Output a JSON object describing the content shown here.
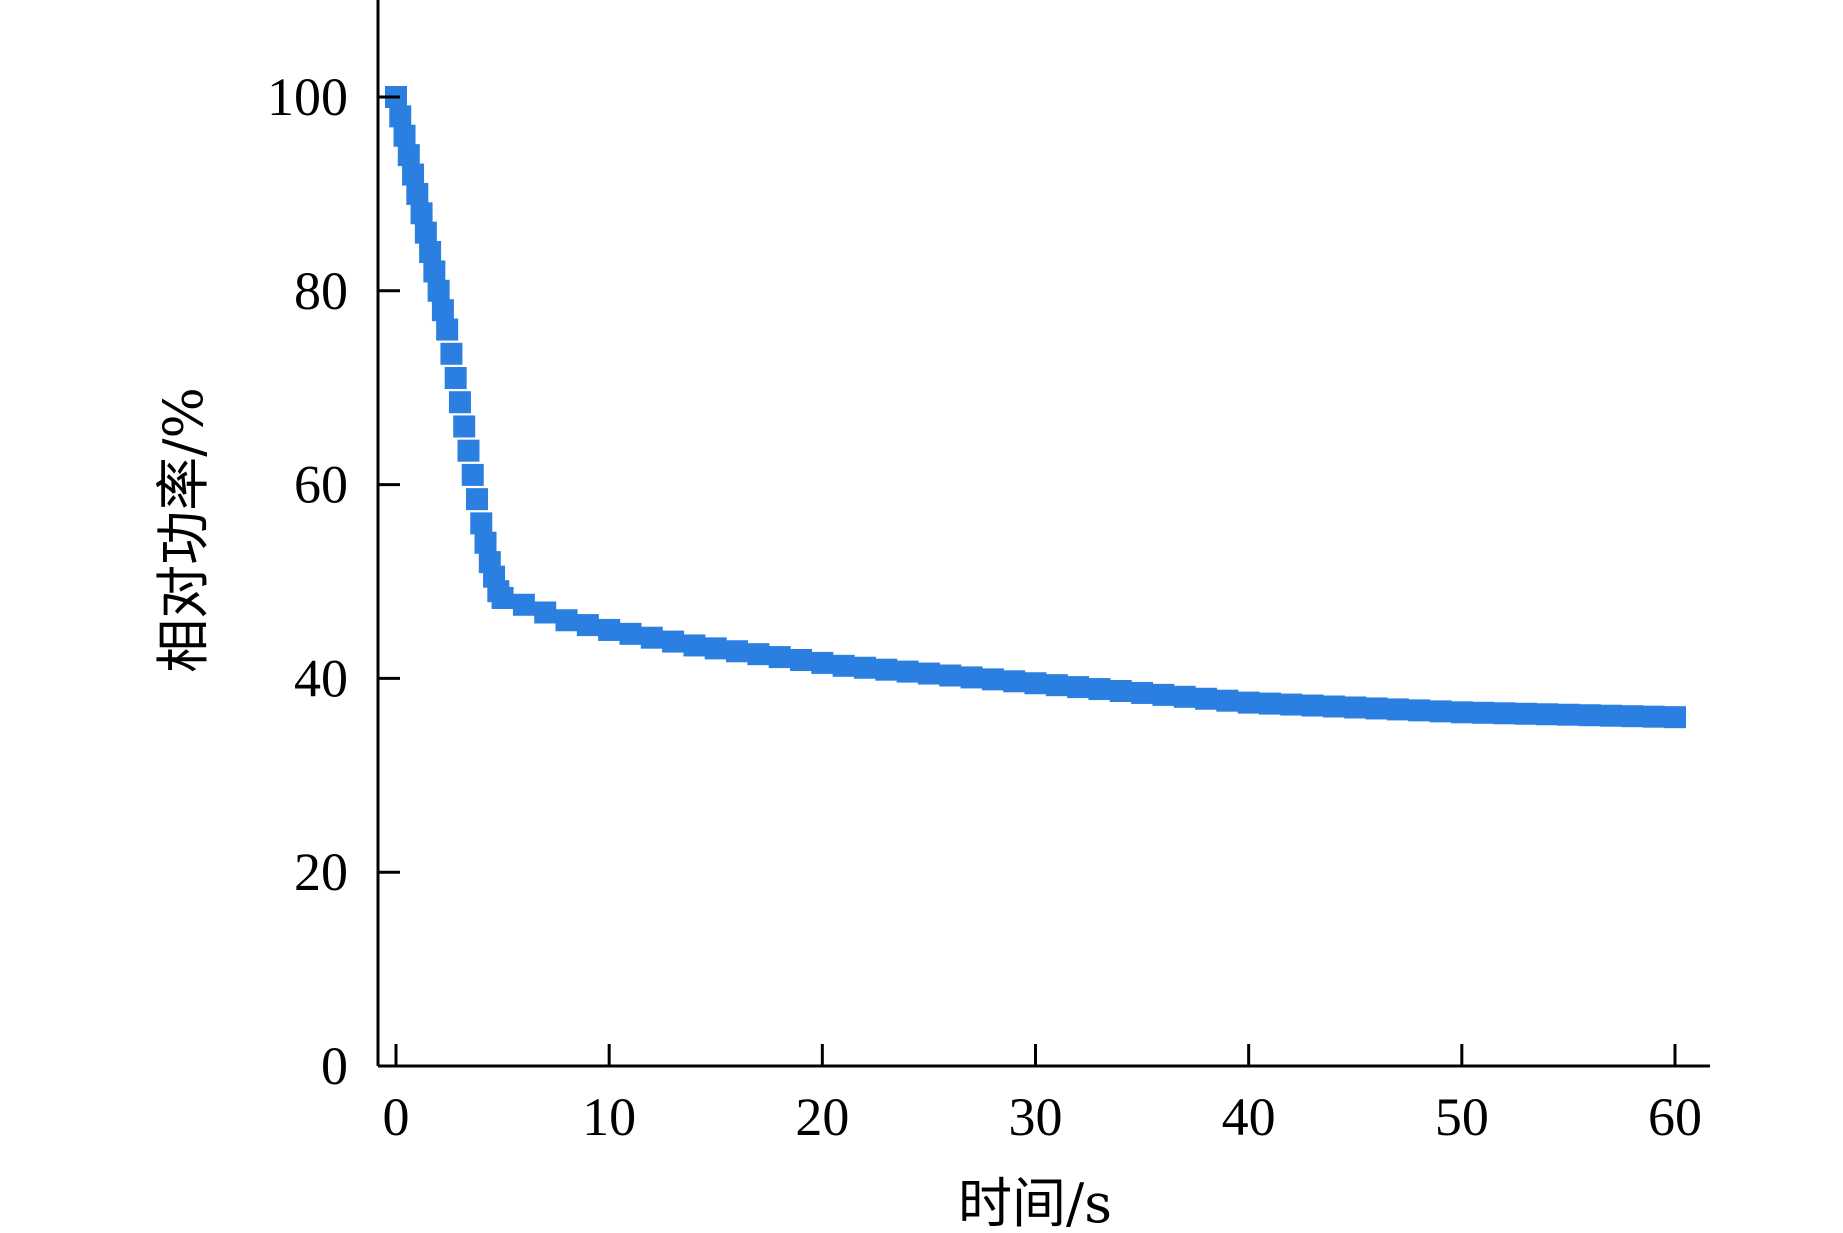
{
  "chart_data": {
    "type": "scatter",
    "xlabel": "时间/s",
    "ylabel": "相对功率/%",
    "xlim": [
      -1,
      61
    ],
    "ylim": [
      0,
      110
    ],
    "xticks": [
      0,
      10,
      20,
      30,
      40,
      50,
      60
    ],
    "yticks": [
      0,
      20,
      40,
      60,
      80,
      100
    ],
    "grid": false,
    "legend": "none",
    "marker": "square",
    "color": "#2a7fe0",
    "series": [
      {
        "x": [
          0,
          0.2,
          0.4,
          0.6,
          0.8,
          1.0,
          1.2,
          1.4,
          1.6,
          1.8,
          2.0,
          2.2,
          2.4,
          2.6,
          2.8,
          3.0,
          3.2,
          3.4,
          3.6,
          3.8,
          4.0,
          4.2,
          4.4,
          4.6,
          4.8,
          5.0,
          6,
          7,
          8,
          9,
          10,
          11,
          12,
          13,
          14,
          15,
          16,
          17,
          18,
          19,
          20,
          21,
          22,
          23,
          24,
          25,
          26,
          27,
          28,
          29,
          30,
          31,
          32,
          33,
          34,
          35,
          36,
          37,
          38,
          39,
          40,
          41,
          42,
          43,
          44,
          45,
          46,
          47,
          48,
          49,
          50,
          51,
          52,
          53,
          54,
          55,
          56,
          57,
          58,
          59,
          60
        ],
        "values": [
          100.0,
          98.0,
          96.0,
          94.0,
          92.0,
          90.0,
          88.0,
          86.0,
          84.0,
          82.0,
          80.0,
          78.0,
          76.0,
          73.5,
          71.0,
          68.5,
          66.0,
          63.5,
          61.0,
          58.5,
          56.0,
          54.0,
          52.0,
          50.5,
          49.0,
          48.3,
          47.6,
          46.8,
          46.0,
          45.5,
          45.0,
          44.6,
          44.2,
          43.8,
          43.4,
          43.1,
          42.8,
          42.5,
          42.2,
          41.9,
          41.6,
          41.3,
          41.1,
          40.9,
          40.7,
          40.5,
          40.3,
          40.1,
          39.9,
          39.7,
          39.5,
          39.3,
          39.1,
          38.9,
          38.7,
          38.5,
          38.3,
          38.1,
          37.9,
          37.7,
          37.5,
          37.4,
          37.3,
          37.2,
          37.1,
          37.0,
          36.9,
          36.8,
          36.7,
          36.6,
          36.5,
          36.45,
          36.4,
          36.35,
          36.3,
          36.25,
          36.2,
          36.15,
          36.1,
          36.05,
          36.0
        ]
      }
    ]
  }
}
